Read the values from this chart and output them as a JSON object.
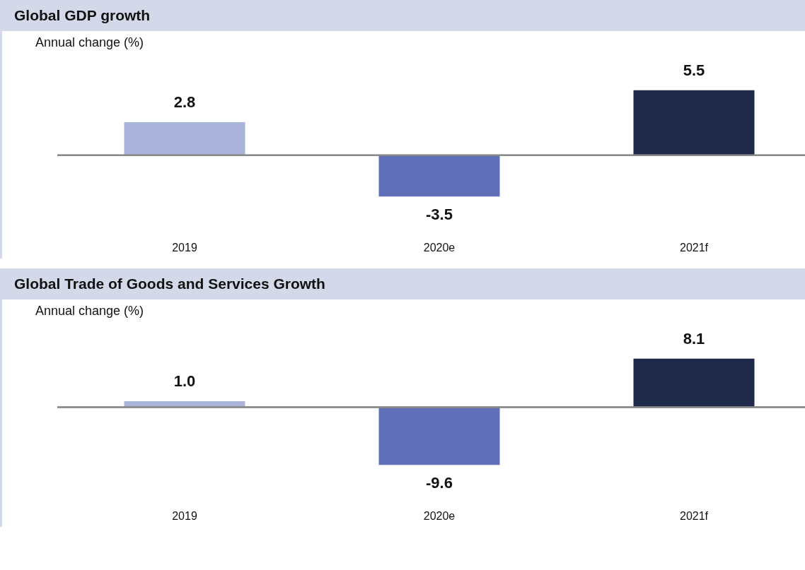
{
  "chart_data": [
    {
      "type": "bar",
      "title": "Global GDP growth",
      "ylabel": "Annual change (%)",
      "categories": [
        "2019",
        "2020e",
        "2021f"
      ],
      "values": [
        2.8,
        -3.5,
        5.5
      ],
      "colors": [
        "#aab4da",
        "#6070b8",
        "#1f2a4a"
      ],
      "value_labels": [
        "2.8",
        "-3.5",
        "5.5"
      ]
    },
    {
      "type": "bar",
      "title": "Global Trade of Goods and Services Growth",
      "ylabel": "Annual change (%)",
      "categories": [
        "2019",
        "2020e",
        "2021f"
      ],
      "values": [
        1.0,
        -9.6,
        8.1
      ],
      "colors": [
        "#aab4da",
        "#6070b8",
        "#1f2a4a"
      ],
      "value_labels": [
        "1.0",
        "-9.6",
        "8.1"
      ]
    }
  ]
}
